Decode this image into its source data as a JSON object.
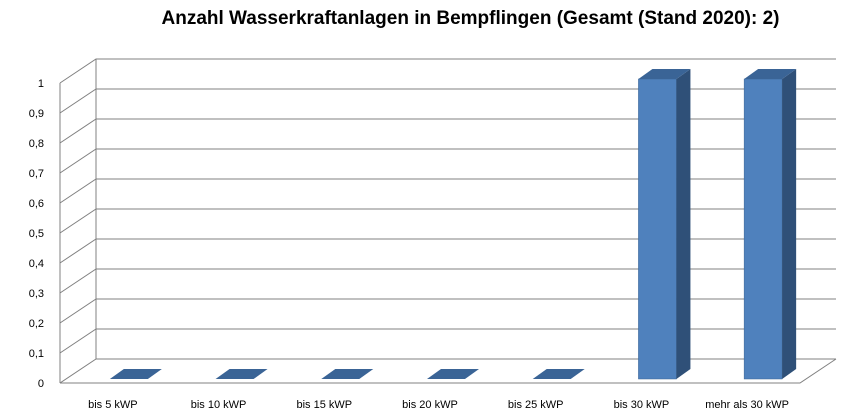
{
  "chart_data": {
    "type": "bar",
    "title": "Anzahl Wasserkraftanlagen in Bempflingen (Gesamt (Stand 2020): 2)",
    "categories": [
      "bis 5 kWP",
      "bis 10 kWP",
      "bis 15 kWP",
      "bis 20 kWP",
      "bis 25 kWP",
      "bis 30 kWP",
      "mehr als 30 kWP"
    ],
    "values": [
      0,
      0,
      0,
      0,
      0,
      1,
      1
    ],
    "ylim": [
      0,
      1
    ],
    "yticks": [
      "0",
      "0,1",
      "0,2",
      "0,3",
      "0,4",
      "0,5",
      "0,6",
      "0,7",
      "0,8",
      "0,9",
      "1"
    ],
    "grid": true,
    "colors": {
      "bar_front": "#4F81BD",
      "bar_side": "#2F5078",
      "bar_top": "#3A6496",
      "grid": "#808080"
    }
  }
}
